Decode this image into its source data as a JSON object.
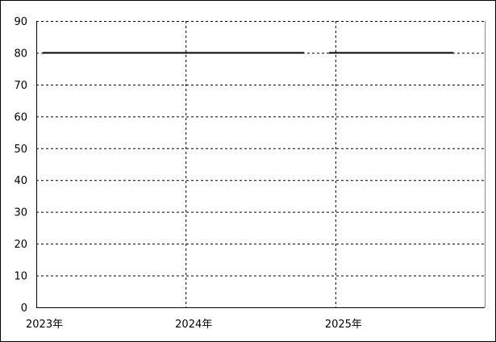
{
  "chart_data": {
    "type": "line",
    "title": "",
    "xlabel": "",
    "ylabel": "",
    "ylim": [
      0,
      90
    ],
    "yticks": [
      0,
      10,
      20,
      30,
      40,
      50,
      60,
      70,
      80,
      90
    ],
    "xlim": [
      "2023-01-01",
      "2026-01-01"
    ],
    "xticks": [
      {
        "date": "2023-01-01",
        "label": "2023年"
      },
      {
        "date": "2024-01-01",
        "label": "2024年"
      },
      {
        "date": "2025-01-01",
        "label": "2025年"
      }
    ],
    "grid": true,
    "series": [
      {
        "color": "#000000",
        "segments": [
          {
            "from": "2023-01",
            "to": "2024-10",
            "value": 80
          },
          {
            "from": "2024-12",
            "to": "2025-10",
            "value": 80
          }
        ]
      }
    ]
  }
}
